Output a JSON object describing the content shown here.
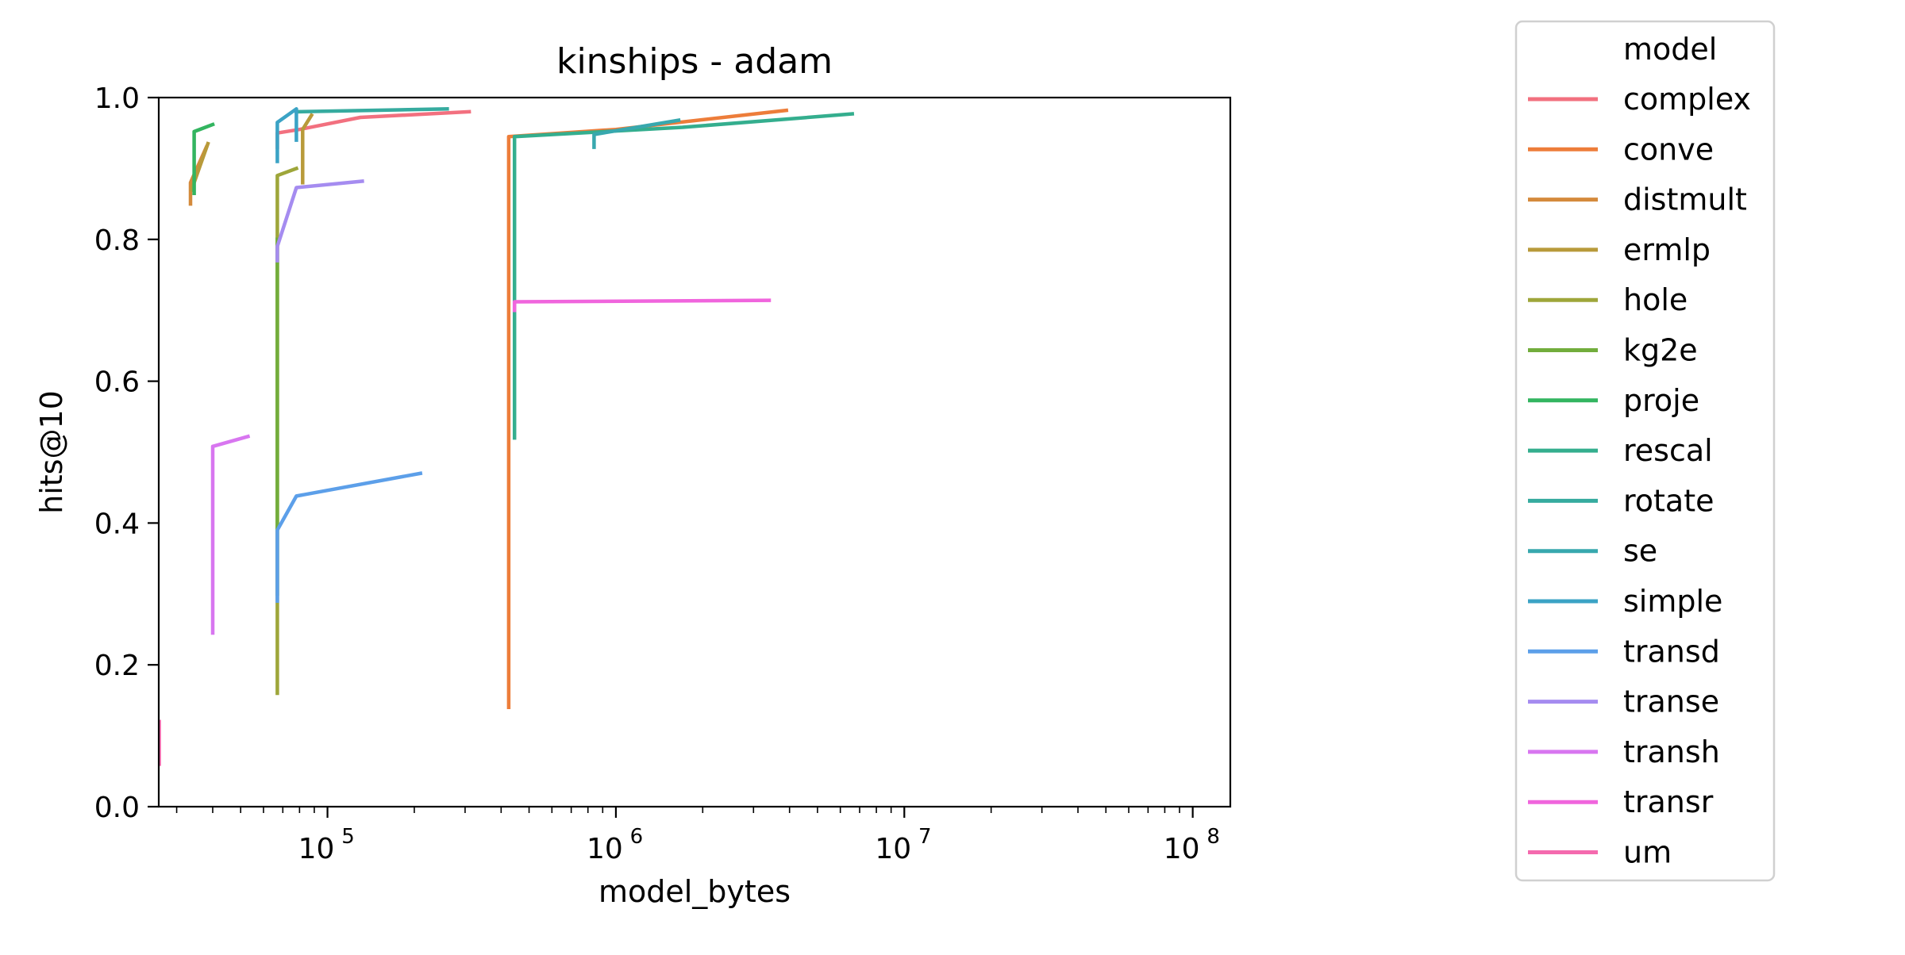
{
  "chart_data": {
    "type": "line",
    "title": "kinships - adam",
    "xlabel": "model_bytes",
    "ylabel": "hits@10",
    "xscale": "log",
    "xlim": [
      26000,
      135000000
    ],
    "ylim": [
      0,
      1
    ],
    "x_ticks": [
      {
        "value": 100000,
        "base": "10",
        "exp": "5"
      },
      {
        "value": 1000000,
        "base": "10",
        "exp": "6"
      },
      {
        "value": 10000000,
        "base": "10",
        "exp": "7"
      },
      {
        "value": 100000000,
        "base": "10",
        "exp": "8"
      }
    ],
    "y_ticks": [
      {
        "value": 0.0,
        "label": "0.0"
      },
      {
        "value": 0.2,
        "label": "0.2"
      },
      {
        "value": 0.4,
        "label": "0.4"
      },
      {
        "value": 0.6,
        "label": "0.6"
      },
      {
        "value": 0.8,
        "label": "0.8"
      },
      {
        "value": 1.0,
        "label": "1.0"
      }
    ],
    "grid": false,
    "legend": {
      "title": "model",
      "placement": "outside right"
    },
    "series": [
      {
        "name": "complex",
        "color": "#f2707f",
        "segments": [
          [
            [
              67000,
              0.93
            ],
            [
              67000,
              0.95
            ],
            [
              80000,
              0.955
            ],
            [
              130000,
              0.972
            ],
            [
              310000,
              0.98
            ]
          ]
        ]
      },
      {
        "name": "conve",
        "color": "#ed7d3a",
        "segments": [
          [
            [
              425000,
              0.14
            ],
            [
              425000,
              0.945
            ],
            [
              1000000,
              0.955
            ],
            [
              3900000,
              0.982
            ]
          ]
        ]
      },
      {
        "name": "distmult",
        "color": "#d48a3c",
        "segments": [
          [
            [
              33500,
              0.85
            ],
            [
              33500,
              0.88
            ],
            [
              38000,
              0.93
            ]
          ]
        ]
      },
      {
        "name": "ermlp",
        "color": "#b89a3a",
        "segments": [
          [
            [
              33800,
              0.87
            ],
            [
              38500,
              0.935
            ]
          ],
          [
            [
              82000,
              0.88
            ],
            [
              82000,
              0.955
            ],
            [
              88000,
              0.975
            ]
          ]
        ]
      },
      {
        "name": "hole",
        "color": "#9ea63a",
        "segments": [
          [
            [
              67000,
              0.16
            ],
            [
              67000,
              0.89
            ],
            [
              78000,
              0.9
            ]
          ]
        ]
      },
      {
        "name": "kg2e",
        "color": "#72ad3c",
        "segments": [
          [
            [
              67000,
              0.3
            ],
            [
              67000,
              0.8
            ]
          ]
        ]
      },
      {
        "name": "proje",
        "color": "#33b560",
        "segments": [
          [
            [
              34500,
              0.865
            ],
            [
              34500,
              0.952
            ],
            [
              40000,
              0.962
            ]
          ]
        ]
      },
      {
        "name": "rescal",
        "color": "#34ae8e",
        "segments": [
          [
            [
              445000,
              0.52
            ],
            [
              445000,
              0.945
            ],
            [
              1700000,
              0.958
            ],
            [
              6600000,
              0.977
            ]
          ]
        ]
      },
      {
        "name": "rotate",
        "color": "#36ab9f",
        "segments": [
          [
            [
              78000,
              0.98
            ],
            [
              260000,
              0.984
            ]
          ]
        ]
      },
      {
        "name": "se",
        "color": "#38a8ae",
        "segments": [
          [
            [
              840000,
              0.93
            ],
            [
              840000,
              0.948
            ],
            [
              1650000,
              0.968
            ]
          ]
        ]
      },
      {
        "name": "simple",
        "color": "#3ba3c5",
        "segments": [
          [
            [
              67000,
              0.91
            ],
            [
              67000,
              0.965
            ],
            [
              78000,
              0.984
            ],
            [
              78000,
              0.94
            ]
          ]
        ]
      },
      {
        "name": "transd",
        "color": "#5c9fe9",
        "segments": [
          [
            [
              67000,
              0.29
            ],
            [
              67000,
              0.39
            ],
            [
              78000,
              0.438
            ],
            [
              210000,
              0.47
            ]
          ]
        ]
      },
      {
        "name": "transe",
        "color": "#a58cf0",
        "segments": [
          [
            [
              67000,
              0.77
            ],
            [
              67000,
              0.79
            ],
            [
              78000,
              0.873
            ],
            [
              132000,
              0.882
            ]
          ]
        ]
      },
      {
        "name": "transh",
        "color": "#d876f0",
        "segments": [
          [
            [
              40000,
              0.245
            ],
            [
              40000,
              0.508
            ],
            [
              53000,
              0.522
            ]
          ]
        ]
      },
      {
        "name": "transr",
        "color": "#f065dd",
        "segments": [
          [
            [
              445000,
              0.7
            ],
            [
              445000,
              0.712
            ],
            [
              3400000,
              0.714
            ]
          ]
        ]
      },
      {
        "name": "um",
        "color": "#f46aae",
        "segments": [
          [
            [
              26100,
              0.06
            ],
            [
              26100,
              0.12
            ]
          ]
        ]
      }
    ]
  }
}
